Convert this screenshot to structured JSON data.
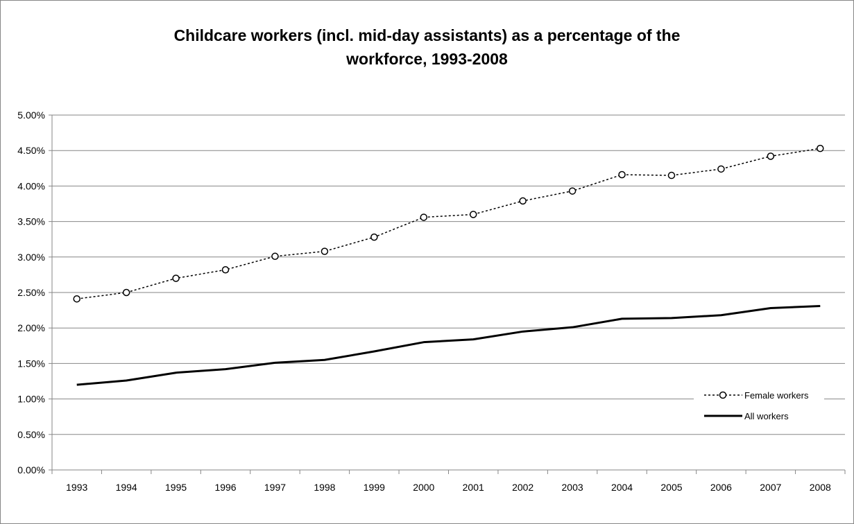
{
  "chart_data": {
    "type": "line",
    "title": [
      "Childcare workers (incl. mid-day assistants) as a percentage of the",
      "workforce, 1993-2008"
    ],
    "xlabel": "",
    "ylabel": "",
    "categories": [
      "1993",
      "1994",
      "1995",
      "1996",
      "1997",
      "1998",
      "1999",
      "2000",
      "2001",
      "2002",
      "2003",
      "2004",
      "2005",
      "2006",
      "2007",
      "2008"
    ],
    "y_ticks": [
      "0.00%",
      "0.50%",
      "1.00%",
      "1.50%",
      "2.00%",
      "2.50%",
      "3.00%",
      "3.50%",
      "4.00%",
      "4.50%",
      "5.00%"
    ],
    "ylim": [
      0,
      5
    ],
    "y_unit": "%",
    "grid": true,
    "legend_position": "bottom-right",
    "series": [
      {
        "name": "Female workers",
        "style": "dotted-line-with-circle-markers",
        "color": "#000000",
        "values": [
          2.41,
          2.5,
          2.7,
          2.82,
          3.01,
          3.08,
          3.28,
          3.56,
          3.6,
          3.79,
          3.93,
          4.16,
          4.15,
          4.24,
          4.42,
          4.53
        ]
      },
      {
        "name": "All workers",
        "style": "solid-line",
        "color": "#000000",
        "values": [
          1.2,
          1.26,
          1.37,
          1.42,
          1.51,
          1.55,
          1.67,
          1.8,
          1.84,
          1.95,
          2.01,
          2.13,
          2.14,
          2.18,
          2.28,
          2.31
        ]
      }
    ]
  },
  "colors": {
    "gridline": "#868686",
    "axis": "#868686",
    "line": "#000000"
  }
}
